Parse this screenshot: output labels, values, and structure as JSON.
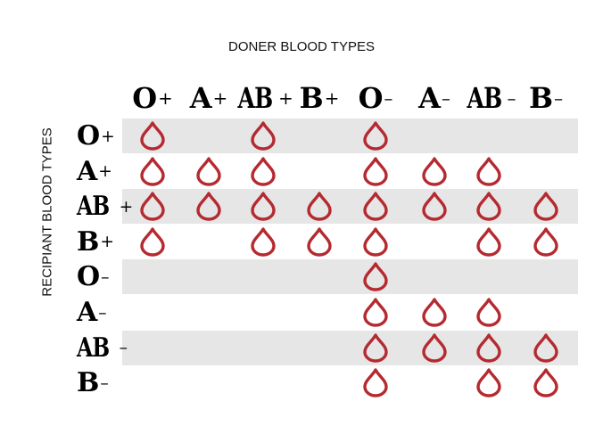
{
  "chart_data": {
    "type": "table",
    "title": "DONER BLOOD TYPES",
    "ylabel": "RECIPIANT BLOOD TYPES",
    "columns": [
      "O+",
      "A+",
      "AB+",
      "B+",
      "O–",
      "A–",
      "AB–",
      "B–"
    ],
    "rows": [
      {
        "label": "O+",
        "cells": [
          1,
          0,
          1,
          0,
          1,
          0,
          0,
          0
        ]
      },
      {
        "label": "A+",
        "cells": [
          1,
          1,
          1,
          0,
          1,
          1,
          1,
          0
        ]
      },
      {
        "label": "AB+",
        "cells": [
          1,
          1,
          1,
          1,
          1,
          1,
          1,
          1
        ]
      },
      {
        "label": "B+",
        "cells": [
          1,
          0,
          1,
          1,
          1,
          0,
          1,
          1
        ]
      },
      {
        "label": "O–",
        "cells": [
          0,
          0,
          0,
          0,
          1,
          0,
          0,
          0
        ]
      },
      {
        "label": "A–",
        "cells": [
          0,
          0,
          0,
          0,
          1,
          1,
          1,
          0
        ]
      },
      {
        "label": "AB–",
        "cells": [
          0,
          0,
          0,
          0,
          1,
          1,
          1,
          1
        ]
      },
      {
        "label": "B–",
        "cells": [
          0,
          0,
          0,
          0,
          1,
          0,
          1,
          1
        ]
      }
    ],
    "colors": {
      "drop": "#b52a30",
      "band": "#e6e6e6"
    },
    "icon": "blood-drop-icon"
  }
}
